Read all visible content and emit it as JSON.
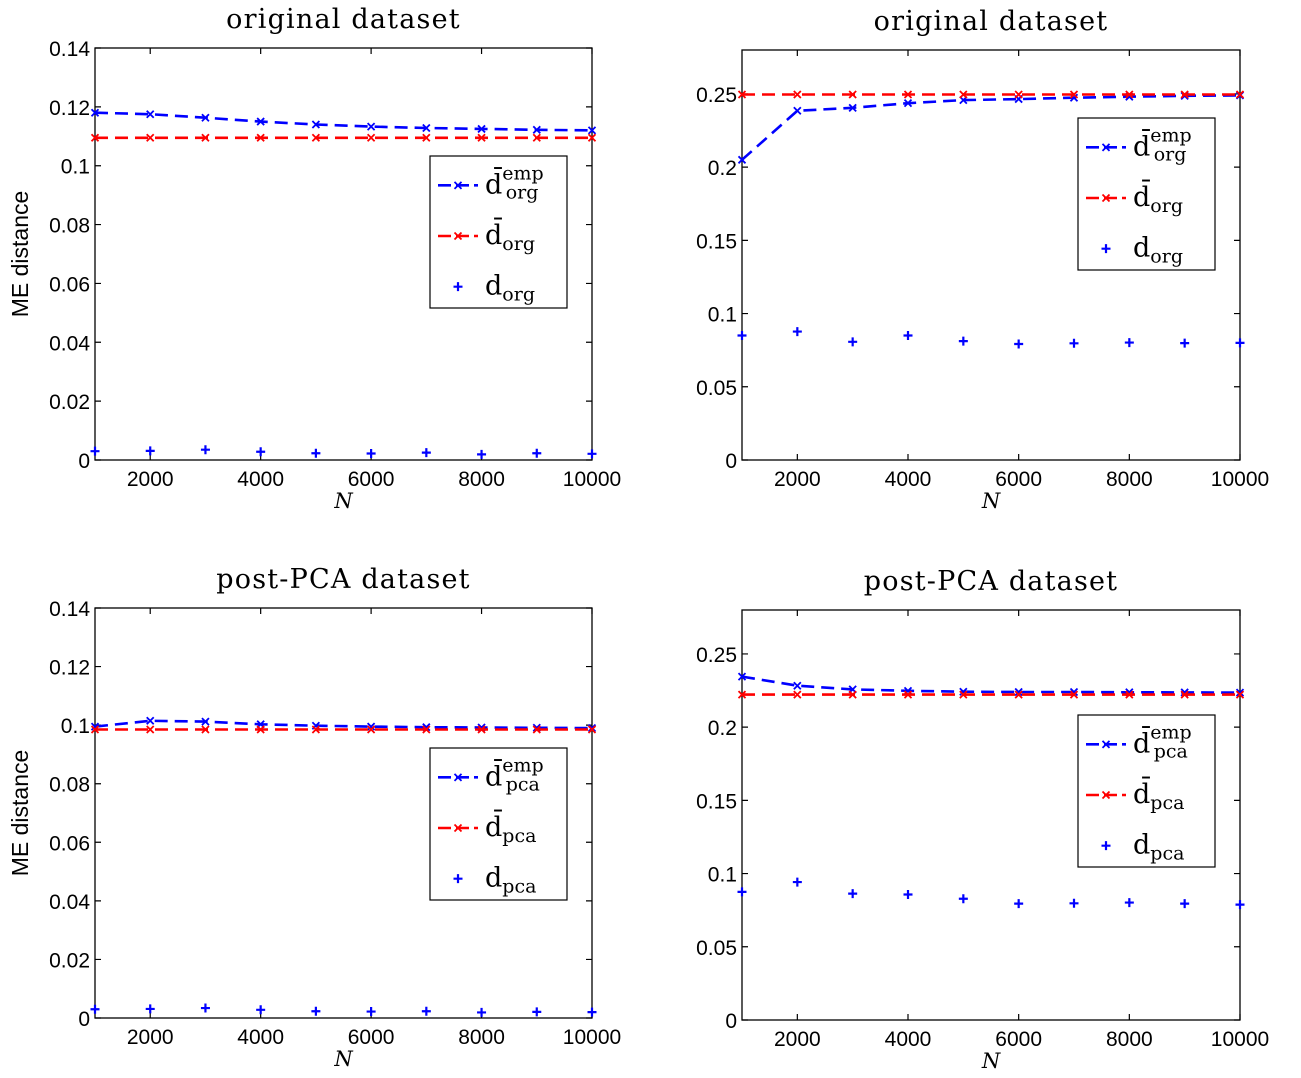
{
  "chart_data": [
    {
      "type": "line",
      "title": "original dataset",
      "xlabel": "N",
      "ylabel": "ME distance",
      "xlim": [
        1000,
        10000
      ],
      "ylim": [
        0,
        0.14
      ],
      "xticks": [
        2000,
        4000,
        6000,
        8000,
        10000
      ],
      "yticks": [
        0,
        0.02,
        0.04,
        0.06,
        0.08,
        0.1,
        0.12,
        0.14
      ],
      "x": [
        1000,
        2000,
        3000,
        4000,
        5000,
        6000,
        7000,
        8000,
        9000,
        10000
      ],
      "grid": false,
      "legend_position": "center-right",
      "series": [
        {
          "name": "d̄",
          "sub": "org",
          "sup": "emp",
          "color": "#0000ff",
          "style": "dashed-x",
          "values": [
            0.118,
            0.1175,
            0.1163,
            0.115,
            0.114,
            0.1133,
            0.1128,
            0.1125,
            0.1122,
            0.112
          ]
        },
        {
          "name": "d̄",
          "sub": "org",
          "sup": "",
          "color": "#ff0000",
          "style": "dashed-x",
          "values": [
            0.1095,
            0.1095,
            0.1095,
            0.1095,
            0.1095,
            0.1095,
            0.1095,
            0.1095,
            0.1095,
            0.1095
          ]
        },
        {
          "name": "d",
          "sub": "org",
          "sup": "",
          "color": "#0000ff",
          "style": "plus",
          "values": [
            0.003,
            0.0031,
            0.0035,
            0.0028,
            0.0023,
            0.0022,
            0.0025,
            0.0019,
            0.0023,
            0.0021
          ]
        }
      ]
    },
    {
      "type": "line",
      "title": "original dataset",
      "xlabel": "N",
      "ylabel": "",
      "xlim": [
        1000,
        10000
      ],
      "ylim": [
        0,
        0.28
      ],
      "xticks": [
        2000,
        4000,
        6000,
        8000,
        10000
      ],
      "yticks": [
        0,
        0.05,
        0.1,
        0.15,
        0.2,
        0.25
      ],
      "x": [
        1000,
        2000,
        3000,
        4000,
        5000,
        6000,
        7000,
        8000,
        9000,
        10000
      ],
      "grid": false,
      "legend_position": "top-right",
      "series": [
        {
          "name": "d̄",
          "sub": "org",
          "sup": "emp",
          "color": "#0000ff",
          "style": "dashed-x",
          "values": [
            0.205,
            0.2385,
            0.2405,
            0.2437,
            0.2458,
            0.2465,
            0.2474,
            0.2481,
            0.2487,
            0.249
          ]
        },
        {
          "name": "d̄",
          "sub": "org",
          "sup": "",
          "color": "#ff0000",
          "style": "dashed-x",
          "values": [
            0.2496,
            0.2496,
            0.2496,
            0.2496,
            0.2496,
            0.2496,
            0.2496,
            0.2496,
            0.2496,
            0.2496
          ]
        },
        {
          "name": "d",
          "sub": "org",
          "sup": "",
          "color": "#0000ff",
          "style": "plus",
          "values": [
            0.085,
            0.0877,
            0.0807,
            0.085,
            0.0812,
            0.0792,
            0.0797,
            0.0802,
            0.0798,
            0.08
          ]
        }
      ]
    },
    {
      "type": "line",
      "title": "post-PCA dataset",
      "xlabel": "N",
      "ylabel": "ME distance",
      "xlim": [
        1000,
        10000
      ],
      "ylim": [
        0,
        0.14
      ],
      "xticks": [
        2000,
        4000,
        6000,
        8000,
        10000
      ],
      "yticks": [
        0,
        0.02,
        0.04,
        0.06,
        0.08,
        0.1,
        0.12,
        0.14
      ],
      "x": [
        1000,
        2000,
        3000,
        4000,
        5000,
        6000,
        7000,
        8000,
        9000,
        10000
      ],
      "grid": false,
      "legend_position": "center-right",
      "series": [
        {
          "name": "d̄",
          "sub": "pca",
          "sup": "emp",
          "color": "#0000ff",
          "style": "dashed-x",
          "values": [
            0.0995,
            0.1015,
            0.1012,
            0.1003,
            0.0998,
            0.0995,
            0.0993,
            0.0992,
            0.0991,
            0.099
          ]
        },
        {
          "name": "d̄",
          "sub": "pca",
          "sup": "",
          "color": "#ff0000",
          "style": "dashed-x",
          "values": [
            0.0985,
            0.0985,
            0.0985,
            0.0985,
            0.0985,
            0.0985,
            0.0985,
            0.0985,
            0.0985,
            0.0985
          ]
        },
        {
          "name": "d",
          "sub": "pca",
          "sup": "",
          "color": "#0000ff",
          "style": "plus",
          "values": [
            0.003,
            0.0031,
            0.0034,
            0.0028,
            0.0023,
            0.0022,
            0.0023,
            0.0019,
            0.0021,
            0.002
          ]
        }
      ]
    },
    {
      "type": "line",
      "title": "post-PCA dataset",
      "xlabel": "N",
      "ylabel": "",
      "xlim": [
        1000,
        10000
      ],
      "ylim": [
        0,
        0.28
      ],
      "xticks": [
        2000,
        4000,
        6000,
        8000,
        10000
      ],
      "yticks": [
        0,
        0.05,
        0.1,
        0.15,
        0.2,
        0.25
      ],
      "x": [
        1000,
        2000,
        3000,
        4000,
        5000,
        6000,
        7000,
        8000,
        9000,
        10000
      ],
      "grid": false,
      "legend_position": "center-right",
      "series": [
        {
          "name": "d̄",
          "sub": "pca",
          "sup": "emp",
          "color": "#0000ff",
          "style": "dashed-x",
          "values": [
            0.2345,
            0.2283,
            0.2258,
            0.2248,
            0.2242,
            0.224,
            0.224,
            0.2238,
            0.2237,
            0.2236
          ]
        },
        {
          "name": "d̄",
          "sub": "pca",
          "sup": "",
          "color": "#ff0000",
          "style": "dashed-x",
          "values": [
            0.2222,
            0.2222,
            0.2222,
            0.2222,
            0.2222,
            0.2222,
            0.2222,
            0.2222,
            0.2222,
            0.2222
          ]
        },
        {
          "name": "d",
          "sub": "pca",
          "sup": "",
          "color": "#0000ff",
          "style": "plus",
          "values": [
            0.0875,
            0.0942,
            0.0863,
            0.0857,
            0.0828,
            0.0795,
            0.0797,
            0.0802,
            0.0795,
            0.0788
          ]
        }
      ]
    }
  ]
}
